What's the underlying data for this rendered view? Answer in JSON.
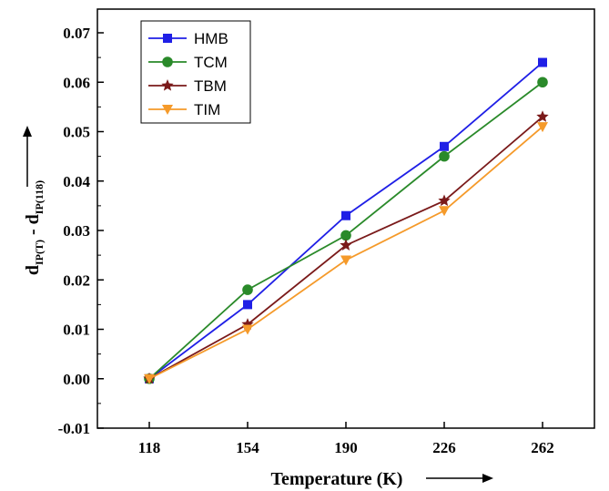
{
  "chart_data": {
    "type": "line",
    "x": [
      118,
      154,
      190,
      226,
      262
    ],
    "xlabel": "Temperature (K)",
    "ylabel": {
      "main_1": "d",
      "sub_1": "IP(T)",
      "separator": " - ",
      "main_2": "d",
      "sub_2": "IP(118)"
    },
    "ylim": [
      -0.01,
      0.07
    ],
    "yticks": [
      "-0.01",
      "0.00",
      "0.01",
      "0.02",
      "0.03",
      "0.04",
      "0.05",
      "0.06",
      "0.07"
    ],
    "xticks": [
      "118",
      "154",
      "190",
      "226",
      "262"
    ],
    "grid": false,
    "legend_position": "top-left",
    "series": [
      {
        "name": "HMB",
        "color": "#1f1fe6",
        "marker": "square",
        "values": [
          0.0,
          0.015,
          0.033,
          0.047,
          0.064
        ]
      },
      {
        "name": "TCM",
        "color": "#2a8a2a",
        "marker": "circle",
        "values": [
          0.0,
          0.018,
          0.029,
          0.045,
          0.06
        ]
      },
      {
        "name": "TBM",
        "color": "#7a1a1a",
        "marker": "star",
        "values": [
          0.0,
          0.011,
          0.027,
          0.036,
          0.053
        ]
      },
      {
        "name": "TIM",
        "color": "#f59a2a",
        "marker": "triangle-down",
        "values": [
          0.0,
          0.01,
          0.024,
          0.034,
          0.051
        ]
      }
    ]
  }
}
